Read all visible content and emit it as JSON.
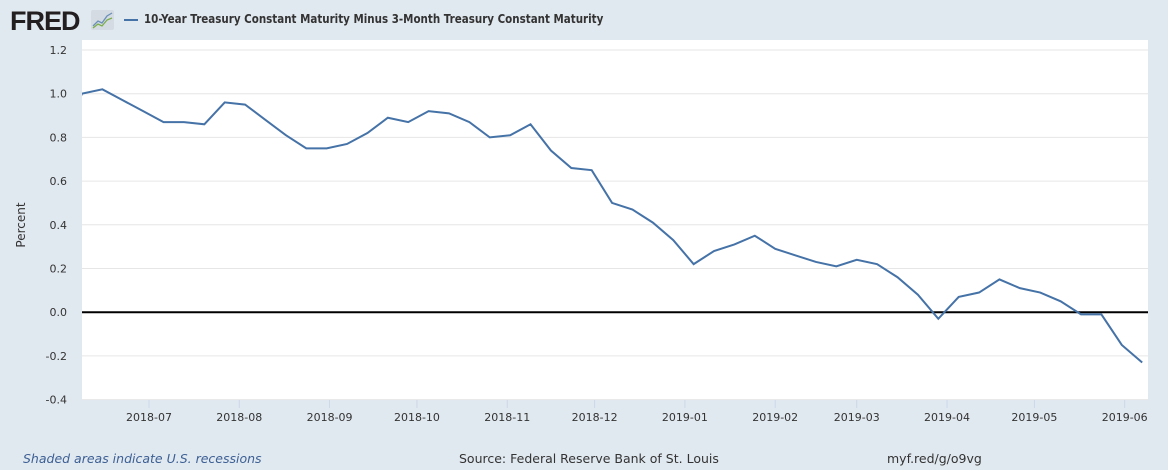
{
  "header": {
    "logo": "FRED",
    "logo_icon": "line-chart-icon"
  },
  "footer": {
    "recessions": "Shaded areas indicate U.S. recessions",
    "source": "Source: Federal Reserve Bank of St. Louis",
    "url": "myf.red/g/o9vg"
  },
  "colors": {
    "series": "#4572a7",
    "background": "#e1e9f0",
    "zero_line": "#000000"
  },
  "chart_data": {
    "type": "line",
    "title": "10-Year Treasury Constant Maturity Minus 3-Month Treasury Constant Maturity",
    "xlabel": "",
    "ylabel": "Percent",
    "ylim": [
      -0.4,
      1.2
    ],
    "yticks": [
      "1.2",
      "1.0",
      "0.8",
      "0.6",
      "0.4",
      "0.2",
      "0.0",
      "-0.2",
      "-0.4"
    ],
    "xlim": [
      "2018-06-08",
      "2019-06-09"
    ],
    "xticks": [
      "2018-07",
      "2018-08",
      "2018-09",
      "2018-10",
      "2018-11",
      "2018-12",
      "2019-01",
      "2019-02",
      "2019-03",
      "2019-04",
      "2019-05",
      "2019-06"
    ],
    "grid": true,
    "legend_position": "top-left",
    "x_start": "2018-06-08",
    "x_step_days": 7,
    "series": [
      {
        "name": "10-Year Treasury Constant Maturity Minus 3-Month Treasury Constant Maturity",
        "values": [
          1.0,
          1.02,
          0.97,
          0.92,
          0.87,
          0.87,
          0.86,
          0.96,
          0.95,
          0.88,
          0.81,
          0.75,
          0.75,
          0.77,
          0.82,
          0.89,
          0.87,
          0.92,
          0.91,
          0.87,
          0.8,
          0.81,
          0.86,
          0.74,
          0.66,
          0.65,
          0.5,
          0.47,
          0.41,
          0.33,
          0.22,
          0.28,
          0.31,
          0.35,
          0.29,
          0.26,
          0.23,
          0.21,
          0.24,
          0.22,
          0.16,
          0.08,
          -0.03,
          0.07,
          0.09,
          0.15,
          0.11,
          0.09,
          0.05,
          -0.01,
          -0.01,
          -0.15,
          -0.23
        ]
      }
    ]
  }
}
